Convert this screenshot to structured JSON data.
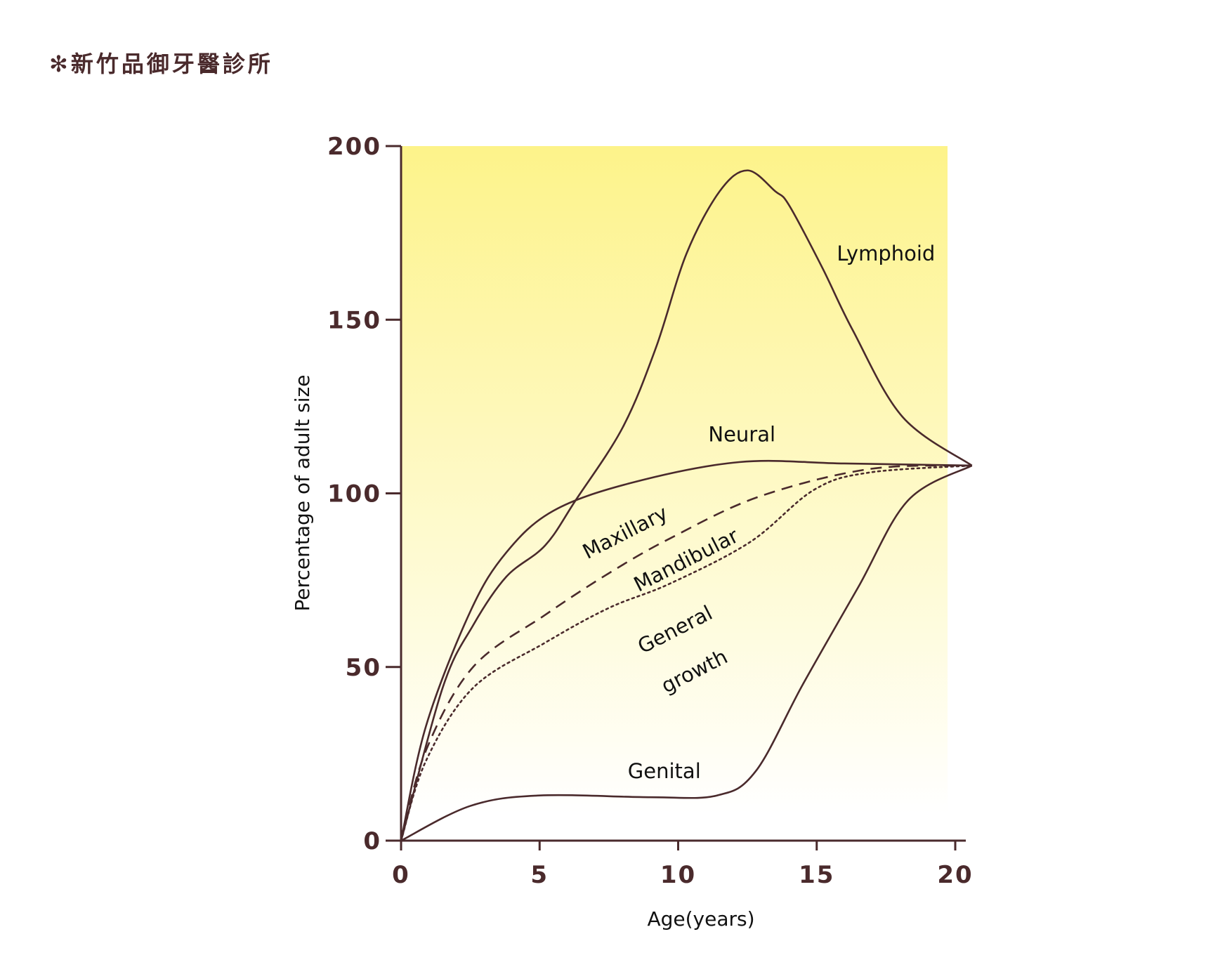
{
  "logo": {
    "text": "✻新竹品御牙醫診所"
  },
  "colors": {
    "ink": "#4a2a2c",
    "bg_top": "#fdf38a",
    "bg_bottom": "#ffffff"
  },
  "chart_data": {
    "type": "line",
    "title": "",
    "xlabel": "Age(years)",
    "ylabel": "Percentage of adult size",
    "xlim": [
      0,
      20.6
    ],
    "ylim": [
      0,
      200
    ],
    "xticks": [
      "0",
      "5",
      "10",
      "15",
      "20"
    ],
    "xtick_values": [
      0,
      5,
      10,
      15,
      20
    ],
    "yticks": [
      "0",
      "50",
      "100",
      "150",
      "200"
    ],
    "ytick_values": [
      0,
      50,
      100,
      150,
      200
    ],
    "series": [
      {
        "name": "Lymphoid",
        "style": "solid",
        "points": [
          [
            0,
            0
          ],
          [
            1.5,
            44
          ],
          [
            2.6,
            62
          ],
          [
            3.8,
            76
          ],
          [
            5.2,
            85
          ],
          [
            6.3,
            98
          ],
          [
            8,
            119
          ],
          [
            9.2,
            142
          ],
          [
            10.3,
            169
          ],
          [
            11.5,
            187
          ],
          [
            12.5,
            193
          ],
          [
            13.5,
            187
          ],
          [
            14,
            183
          ],
          [
            15.2,
            165
          ],
          [
            16.3,
            147
          ],
          [
            18.1,
            122
          ],
          [
            20.6,
            108
          ]
        ]
      },
      {
        "name": "Neural",
        "style": "solid",
        "points": [
          [
            0,
            0
          ],
          [
            0.9,
            33
          ],
          [
            2.5,
            66
          ],
          [
            3.8,
            83
          ],
          [
            5.5,
            95
          ],
          [
            8.3,
            103
          ],
          [
            12.2,
            109
          ],
          [
            16,
            108.6
          ],
          [
            20.6,
            108
          ]
        ]
      },
      {
        "name": "Maxillary",
        "style": "dashed",
        "points": [
          [
            0,
            0
          ],
          [
            0.9,
            26
          ],
          [
            2.6,
            50
          ],
          [
            5.2,
            65
          ],
          [
            7.5,
            77
          ],
          [
            9.7,
            87
          ],
          [
            12.9,
            99
          ],
          [
            16.9,
            107
          ],
          [
            20.6,
            108
          ]
        ]
      },
      {
        "name": "Mandibular",
        "style": "dotted",
        "points": [
          [
            0,
            0
          ],
          [
            0.9,
            23
          ],
          [
            2.6,
            44
          ],
          [
            5.2,
            57
          ],
          [
            7.5,
            67
          ],
          [
            9.7,
            74
          ],
          [
            12.6,
            86
          ],
          [
            14.9,
            101
          ],
          [
            16.9,
            106
          ],
          [
            20.6,
            108
          ]
        ]
      },
      {
        "name": "Genital",
        "style": "solid",
        "points": [
          [
            0,
            0
          ],
          [
            2.5,
            10
          ],
          [
            5,
            13
          ],
          [
            9,
            12.5
          ],
          [
            11.4,
            13
          ],
          [
            12.8,
            20
          ],
          [
            14.5,
            45
          ],
          [
            16.5,
            73
          ],
          [
            18.3,
            98
          ],
          [
            20.6,
            108
          ]
        ]
      }
    ],
    "annotations": [
      {
        "text": "Lymphoid",
        "x": 17.5,
        "y": 167,
        "rotate": 0
      },
      {
        "text": "Neural",
        "x": 12.3,
        "y": 115,
        "rotate": 0
      },
      {
        "text": "Maxillary",
        "x": 8.2,
        "y": 87,
        "rotate": -27
      },
      {
        "text": "Mandibular",
        "x": 10.4,
        "y": 79,
        "rotate": -27
      },
      {
        "text": "General",
        "x": 10,
        "y": 59,
        "rotate": -27
      },
      {
        "text": "growth",
        "x": 10.7,
        "y": 47,
        "rotate": -27
      },
      {
        "text": "Genital",
        "x": 9.5,
        "y": 18,
        "rotate": 0
      }
    ]
  }
}
